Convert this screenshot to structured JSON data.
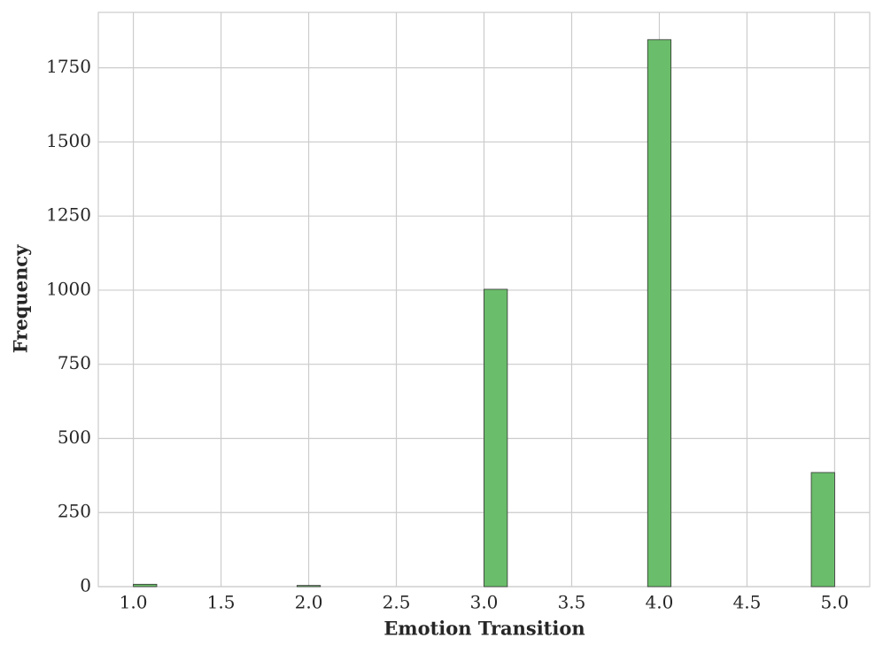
{
  "chart_data": {
    "type": "histogram",
    "x_label": "Emotion Transition",
    "y_label": "Frequency",
    "bins": [
      1,
      1.1333,
      1.2667,
      1.4,
      1.5333,
      1.6667,
      1.8,
      1.9333,
      2.0667,
      2.2,
      2.3333,
      2.4667,
      2.6,
      2.7333,
      2.8667,
      3,
      3.1333,
      3.2667,
      3.4,
      3.5333,
      3.6667,
      3.8,
      3.9333,
      4.0667,
      4.2,
      4.3333,
      4.4667,
      4.6,
      4.7333,
      4.8667,
      5
    ],
    "values": [
      8,
      0,
      0,
      0,
      0,
      0,
      0,
      4,
      0,
      0,
      0,
      0,
      0,
      0,
      0,
      1003,
      0,
      0,
      0,
      0,
      0,
      0,
      1845,
      0,
      0,
      0,
      0,
      0,
      0,
      385
    ],
    "color": "#6abd6a",
    "xlim": [
      0.8,
      5.2
    ],
    "xticks": [
      {
        "value": 1,
        "label": "1.0"
      },
      1.5,
      {
        "value": 2,
        "label": "2.0"
      },
      2.5,
      {
        "value": 3,
        "label": "3.0"
      },
      3.5,
      {
        "value": 4,
        "label": "4.0"
      },
      4.5,
      {
        "value": 5,
        "label": "5.0"
      }
    ],
    "ylim": [
      0,
      1937
    ],
    "yticks": [
      0,
      250,
      500,
      750,
      1000,
      1250,
      1500,
      1750
    ],
    "grid": true
  }
}
